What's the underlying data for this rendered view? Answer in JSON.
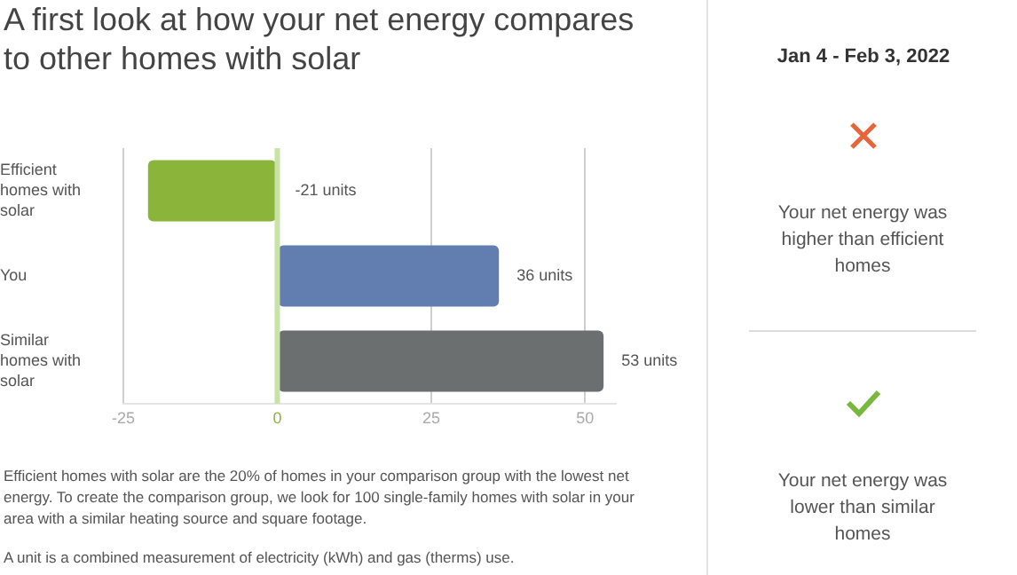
{
  "chart_data": {
    "type": "bar",
    "orientation": "horizontal",
    "title": "A first look at how your net energy compares to other homes with solar",
    "subtitle": "Jan 4 - Feb 3, 2022",
    "categories": [
      "Efficient homes with solar",
      "You",
      "Similar homes with solar"
    ],
    "values": [
      -21,
      36,
      53
    ],
    "colors": [
      "#8ab53a",
      "#627eb0",
      "#6b6f6f"
    ],
    "value_labels": [
      "-21 units",
      "36 units",
      "53 units"
    ],
    "xlim": [
      -25,
      55
    ],
    "xticks": [
      -25,
      0,
      25,
      50
    ],
    "grid": "x",
    "ref_lines": [
      {
        "axis": "x",
        "value": 0,
        "color": "#c9e2a8"
      }
    ],
    "annotations": [
      "Efficient homes with solar are the 20% of homes in your comparison group with the lowest net energy. To create the comparison group, we look for 100 single-family homes with solar in your area with a similar heating source and square footage.",
      "A unit is a combined measurement of electricity (kWh) and gas (therms) use.",
      "Your net energy was higher than efficient homes",
      "Your net energy was lower than similar homes"
    ]
  }
}
